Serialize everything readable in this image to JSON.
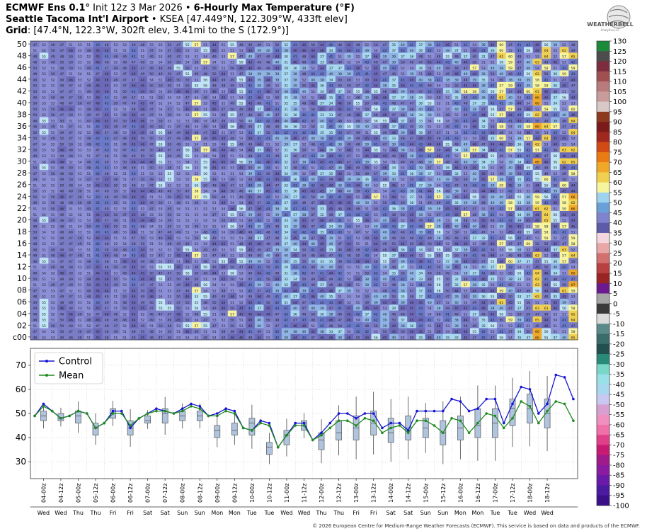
{
  "header": {
    "line1_bold": "ECMWF Ens 0.1°",
    "line1_rest": " Init 12z 3 Mar 2026 • ",
    "line1_bold2": "6-Hourly Max Temperature (°F)",
    "line2_bold": "Seattle Tacoma Int'l Airport",
    "line2_rest": " • KSEA [47.449°N, 122.309°W, 433ft elev]",
    "line3_bold": "Grid",
    "line3_rest": ": [47.4°N, 122.3°W, 302ft elev, 3.41mi to the S (172.9°)]"
  },
  "logo": {
    "text": "WEATHERBELL",
    "subtext": "Analytics LLC",
    "icon": "globe-logo-icon"
  },
  "copyright": "© 2026 European Centre for Medium-Range Weather Forecasts (ECMWF). This service is based on data and products of the ECMWF.",
  "chart_data": [
    {
      "type": "heatmap",
      "title": "",
      "y_tick_labels": [
        "50",
        "48",
        "46",
        "44",
        "42",
        "40",
        "38",
        "36",
        "34",
        "32",
        "30",
        "28",
        "26",
        "24",
        "22",
        "20",
        "18",
        "16",
        "14",
        "12",
        "10",
        "08",
        "06",
        "04",
        "02",
        "c00"
      ],
      "members": 51,
      "n_times": 61,
      "colorbar": {
        "ticks": [
          130,
          125,
          120,
          115,
          110,
          105,
          100,
          95,
          90,
          85,
          80,
          75,
          70,
          65,
          60,
          55,
          50,
          45,
          40,
          35,
          30,
          25,
          20,
          15,
          10,
          5,
          0,
          -5,
          -10,
          -15,
          -20,
          -25,
          -30,
          -35,
          -40,
          -45,
          -50,
          -55,
          -60,
          -65,
          -70,
          -75,
          -80,
          -85,
          -90,
          -95,
          -100
        ],
        "colors": [
          "#1b8a3a",
          "#4d4d4d",
          "#7d2d3e",
          "#a05050",
          "#b87a7a",
          "#c99c9c",
          "#d8c8c8",
          "#8c3a1e",
          "#7a1a1a",
          "#a0281e",
          "#d24a14",
          "#ea7a14",
          "#f0a828",
          "#f0d050",
          "#f7f4a0",
          "#9fd2ee",
          "#6a9fd8",
          "#7f82cc",
          "#5d5aa8",
          "#f6d6de",
          "#e8a8a8",
          "#d27070",
          "#b84040",
          "#9a2424",
          "#6c1a90",
          "#a6a6a6",
          "#3a3a3a",
          "#dcdcdc",
          "#5a8a8a",
          "#3a6c6c",
          "#225050",
          "#2a8a7a",
          "#7ad6c6",
          "#9ae0e8",
          "#a8d8f0",
          "#c8c8f0",
          "#d8a0d0",
          "#f090c0",
          "#f070a8",
          "#e0408a",
          "#c81a72",
          "#a01a8a",
          "#8a1aa0",
          "#6a1aa8",
          "#4a1aa0",
          "#3a108a",
          "#2a1060"
        ]
      }
    },
    {
      "type": "line",
      "legend": [
        "Control",
        "Mean"
      ],
      "legend_position": "top-left",
      "ylim": [
        23,
        77
      ],
      "y_ticks": [
        30,
        40,
        50,
        60,
        70
      ],
      "grid": true,
      "x_tick_labels": [
        "04-00z",
        "04-12z",
        "05-00z",
        "05-12z",
        "06-00z",
        "06-12z",
        "07-00z",
        "07-12z",
        "08-00z",
        "08-12z",
        "09-00z",
        "09-12z",
        "10-00z",
        "10-12z",
        "11-00z",
        "11-12z",
        "12-00z",
        "12-12z",
        "13-00z",
        "13-12z",
        "14-00z",
        "14-12z",
        "15-00z",
        "15-12z",
        "16-00z",
        "16-12z",
        "17-00z",
        "17-12z",
        "18-00z",
        "18-12z"
      ],
      "day_labels": [
        "Wed",
        "Wed",
        "Thu",
        "Thu",
        "Fri",
        "Fri",
        "Sat",
        "Sat",
        "Sun",
        "Sun",
        "Mon",
        "Mon",
        "Tue",
        "Tue",
        "Wed",
        "Wed",
        "Thu",
        "Thu",
        "Fri",
        "Fri",
        "Sat",
        "Sat",
        "Sun",
        "Sun",
        "Mon",
        "Mon",
        "Tue",
        "Tue",
        "Wed",
        "Wed"
      ],
      "series": [
        {
          "name": "Control",
          "color": "#1414d2",
          "values": [
            49,
            54,
            51,
            48,
            49,
            51,
            50,
            44,
            46,
            51,
            51,
            44,
            48,
            50,
            52,
            51,
            50,
            52,
            54,
            53,
            49,
            50,
            52,
            51,
            44,
            43,
            47,
            46,
            36,
            41,
            46,
            46,
            39,
            42,
            46,
            50,
            50,
            48,
            50,
            50,
            44,
            46,
            46,
            43,
            51,
            51,
            51,
            51,
            56,
            55,
            51,
            52,
            56,
            56,
            46,
            54,
            61,
            60,
            50,
            54,
            66,
            65,
            56
          ]
        },
        {
          "name": "Mean",
          "color": "#208a20",
          "values": [
            49,
            53,
            51,
            48,
            49,
            51,
            50,
            44,
            46,
            50,
            50,
            45,
            48,
            50,
            51,
            51,
            50,
            51,
            53,
            52,
            49,
            49,
            51,
            50,
            44,
            43,
            46,
            45,
            36,
            41,
            45,
            45,
            39,
            41,
            44,
            47,
            47,
            45,
            48,
            47,
            42,
            44,
            45,
            42,
            47,
            47,
            45,
            42,
            48,
            47,
            42,
            46,
            50,
            49,
            44,
            48,
            55,
            53,
            46,
            51,
            55,
            54,
            47
          ]
        }
      ],
      "box_data_every_12h": [
        [
          47,
          49,
          51
        ],
        [
          47,
          48,
          50
        ],
        [
          46,
          49,
          51
        ],
        [
          41,
          44,
          46
        ],
        [
          48,
          50,
          52
        ],
        [
          41,
          44,
          47
        ],
        [
          46,
          47,
          49
        ],
        [
          46,
          50,
          52
        ],
        [
          47,
          49,
          51
        ],
        [
          47,
          49,
          51
        ],
        [
          40,
          43,
          45
        ],
        [
          41,
          43,
          46
        ],
        [
          41,
          46,
          48
        ],
        [
          33,
          36,
          38
        ],
        [
          37,
          41,
          43
        ],
        [
          43,
          46,
          47
        ],
        [
          35,
          39,
          42
        ],
        [
          39,
          42,
          47
        ],
        [
          39,
          44,
          49
        ],
        [
          41,
          46,
          51
        ],
        [
          38,
          42,
          48
        ],
        [
          39,
          44,
          49
        ],
        [
          40,
          44,
          48
        ],
        [
          37,
          42,
          47
        ],
        [
          39,
          44,
          49
        ],
        [
          40,
          45,
          52
        ],
        [
          40,
          46,
          52
        ],
        [
          45,
          52,
          56
        ],
        [
          46,
          52,
          58
        ],
        [
          44,
          50,
          56
        ]
      ]
    }
  ]
}
